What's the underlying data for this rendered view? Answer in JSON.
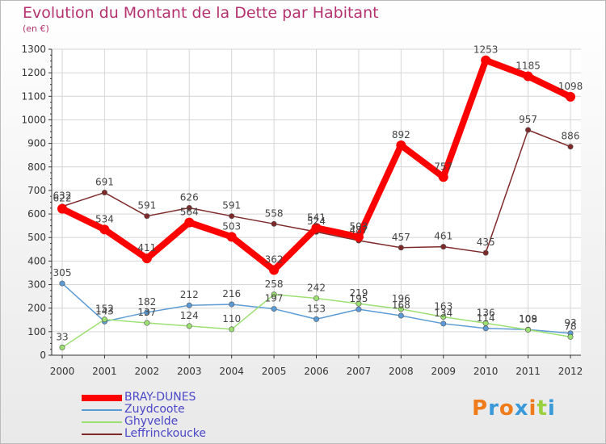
{
  "header": {
    "title": "Evolution du Montant de la Dette par Habitant",
    "subtitle": "(en €)"
  },
  "brand": {
    "letters": [
      "P",
      "r",
      "o",
      "x",
      "i",
      "t",
      "i"
    ]
  },
  "colors": {
    "title": "#b4336e",
    "axis": "#333333",
    "grid": "#d6d6d6",
    "bray_dunes": "#ff0000",
    "zuydcoote": "#5b9bd5",
    "ghyvelde": "#9de072",
    "leffrinckoucke": "#7f2a2a",
    "legend_text": "#4a47c8",
    "brand": [
      "#f07b1a",
      "#3a9ad9",
      "#f07b1a",
      "#3a9ad9",
      "#f07b1a",
      "#9bd13e",
      "#3a9ad9"
    ]
  },
  "chart_data": {
    "type": "line",
    "title": "Evolution du Montant de la Dette par Habitant",
    "subtitle": "(en €)",
    "x": [
      2000,
      2001,
      2002,
      2003,
      2004,
      2005,
      2006,
      2007,
      2008,
      2009,
      2010,
      2011,
      2012
    ],
    "x_tick_labels": [
      "2000",
      "2001",
      "2002",
      "2003",
      "2004",
      "2005",
      "2006",
      "2007",
      "2008",
      "2009",
      "2010",
      "2011",
      "2012"
    ],
    "ylim": [
      0,
      1300
    ],
    "y_ticks": [
      0,
      100,
      200,
      300,
      400,
      500,
      600,
      700,
      800,
      900,
      1000,
      1100,
      1200,
      1300
    ],
    "grid": true,
    "legend_position": "bottom-left",
    "series": [
      {
        "name": "BRAY-DUNES",
        "color": "#ff0000",
        "weight": "thick",
        "values": [
          622,
          534,
          411,
          564,
          503,
          362,
          541,
          503,
          892,
          757,
          1253,
          1185,
          1098
        ],
        "labels": [
          "622",
          "534",
          "411",
          "564",
          "503",
          "362",
          "541",
          "503",
          "892",
          "757",
          "1253",
          "1185",
          "1098"
        ]
      },
      {
        "name": "Zuydcoote",
        "color": "#5b9bd5",
        "weight": "thin",
        "values": [
          305,
          143,
          182,
          212,
          216,
          197,
          153,
          195,
          168,
          134,
          114,
          109,
          93
        ],
        "labels": [
          "305",
          "143",
          "182",
          "212",
          "216",
          "197",
          "153",
          "195",
          "168",
          "134",
          "114",
          "109",
          "93"
        ]
      },
      {
        "name": "Ghyvelde",
        "color": "#9de072",
        "weight": "thin",
        "values": [
          33,
          152,
          137,
          124,
          110,
          258,
          242,
          219,
          196,
          163,
          136,
          108,
          78
        ],
        "labels": [
          "33",
          "152",
          "137",
          "124",
          "110",
          "258",
          "242",
          "219",
          "196",
          "163",
          "136",
          "108",
          "78"
        ]
      },
      {
        "name": "Leffrinckoucke",
        "color": "#7f2a2a",
        "weight": "thin",
        "values": [
          632,
          691,
          591,
          626,
          591,
          558,
          524,
          487,
          457,
          461,
          435,
          957,
          886
        ],
        "labels": [
          "632",
          "691",
          "591",
          "626",
          "591",
          "558",
          "524",
          "487",
          "457",
          "461",
          "435",
          "957",
          "886"
        ]
      }
    ]
  }
}
